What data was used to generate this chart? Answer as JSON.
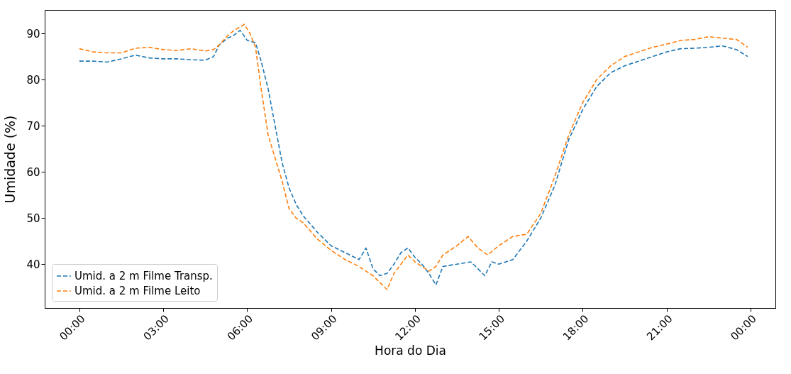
{
  "chart_data": {
    "type": "line",
    "xlabel": "Hora do Dia",
    "ylabel": "Umidade (%)",
    "xlim": [
      -1.24,
      24.89
    ],
    "ylim": [
      30.5,
      95.1
    ],
    "xticks": [
      {
        "value": 0,
        "label": "00:00"
      },
      {
        "value": 3,
        "label": "03:00"
      },
      {
        "value": 6,
        "label": "06:00"
      },
      {
        "value": 9,
        "label": "09:00"
      },
      {
        "value": 12,
        "label": "12:00"
      },
      {
        "value": 15,
        "label": "15:00"
      },
      {
        "value": 18,
        "label": "18:00"
      },
      {
        "value": 21,
        "label": "21:00"
      },
      {
        "value": 24,
        "label": "00:00"
      }
    ],
    "yticks": [
      40,
      50,
      60,
      70,
      80,
      90
    ],
    "legend": "bottom left",
    "grid": false,
    "line_style": "dashed",
    "marker": "none",
    "series": [
      {
        "name": "Umid. a 2 m Filme Transp.",
        "color": "#1f77b4",
        "x": [
          0,
          0.5,
          1,
          1.5,
          2,
          2.5,
          3,
          3.5,
          4,
          4.5,
          4.8,
          5,
          5.3,
          5.5,
          5.75,
          6,
          6.3,
          6.5,
          6.75,
          7,
          7.25,
          7.5,
          7.75,
          8,
          8.5,
          9,
          9.5,
          10,
          10.25,
          10.5,
          10.75,
          11,
          11.25,
          11.5,
          11.75,
          12,
          12.25,
          12.5,
          12.75,
          13,
          13.5,
          14,
          14.5,
          14.75,
          15,
          15.5,
          16,
          16.5,
          17,
          17.5,
          18,
          18.5,
          19,
          19.5,
          20,
          20.5,
          21,
          21.5,
          22,
          22.5,
          23,
          23.5,
          23.9
        ],
        "values": [
          84,
          84,
          83.8,
          84.5,
          85.3,
          84.7,
          84.5,
          84.5,
          84.3,
          84.2,
          85,
          87.5,
          89,
          89.5,
          90.7,
          88.5,
          88,
          84,
          78,
          70,
          62,
          56.5,
          53,
          50.5,
          47,
          44,
          42.5,
          41,
          43.5,
          39,
          37.5,
          38,
          40,
          42.5,
          43.5,
          41.5,
          40,
          38,
          35.5,
          39.5,
          40,
          40.5,
          37.5,
          40.5,
          40,
          41,
          45,
          50,
          57,
          67,
          73.5,
          78.5,
          81.5,
          83,
          84,
          85,
          86,
          86.7,
          86.8,
          87,
          87.3,
          86.5,
          85
        ]
      },
      {
        "name": "Umid. a 2 m Filme Leito",
        "color": "#ff7f0e",
        "x": [
          0,
          0.5,
          1,
          1.5,
          2,
          2.5,
          3,
          3.5,
          4,
          4.5,
          4.8,
          5,
          5.3,
          5.5,
          5.9,
          6.1,
          6.3,
          6.5,
          6.75,
          7,
          7.25,
          7.5,
          7.75,
          8,
          8.5,
          9,
          9.5,
          10,
          10.5,
          10.75,
          11,
          11.25,
          11.5,
          11.75,
          12,
          12.5,
          12.75,
          13,
          13.5,
          13.9,
          14.25,
          14.6,
          15,
          15.5,
          16,
          16.5,
          17,
          17.5,
          18,
          18.5,
          19,
          19.5,
          20,
          20.5,
          21,
          21.5,
          22,
          22.5,
          23,
          23.5,
          23.9
        ],
        "values": [
          86.7,
          86,
          85.8,
          85.8,
          86.8,
          87,
          86.5,
          86.3,
          86.7,
          86.2,
          86.5,
          87.5,
          89.5,
          90.5,
          92,
          90,
          87,
          78,
          68,
          63,
          58,
          52,
          50,
          49,
          45.5,
          43,
          41,
          39.5,
          37.5,
          36,
          34.5,
          38,
          40,
          42,
          40.5,
          38.5,
          39.5,
          42,
          44,
          46,
          43.5,
          42,
          44,
          46,
          46.5,
          51,
          59,
          68,
          75,
          80,
          83,
          85,
          86,
          87,
          87.7,
          88.5,
          88.7,
          89.3,
          89,
          88.7,
          87
        ]
      }
    ]
  }
}
